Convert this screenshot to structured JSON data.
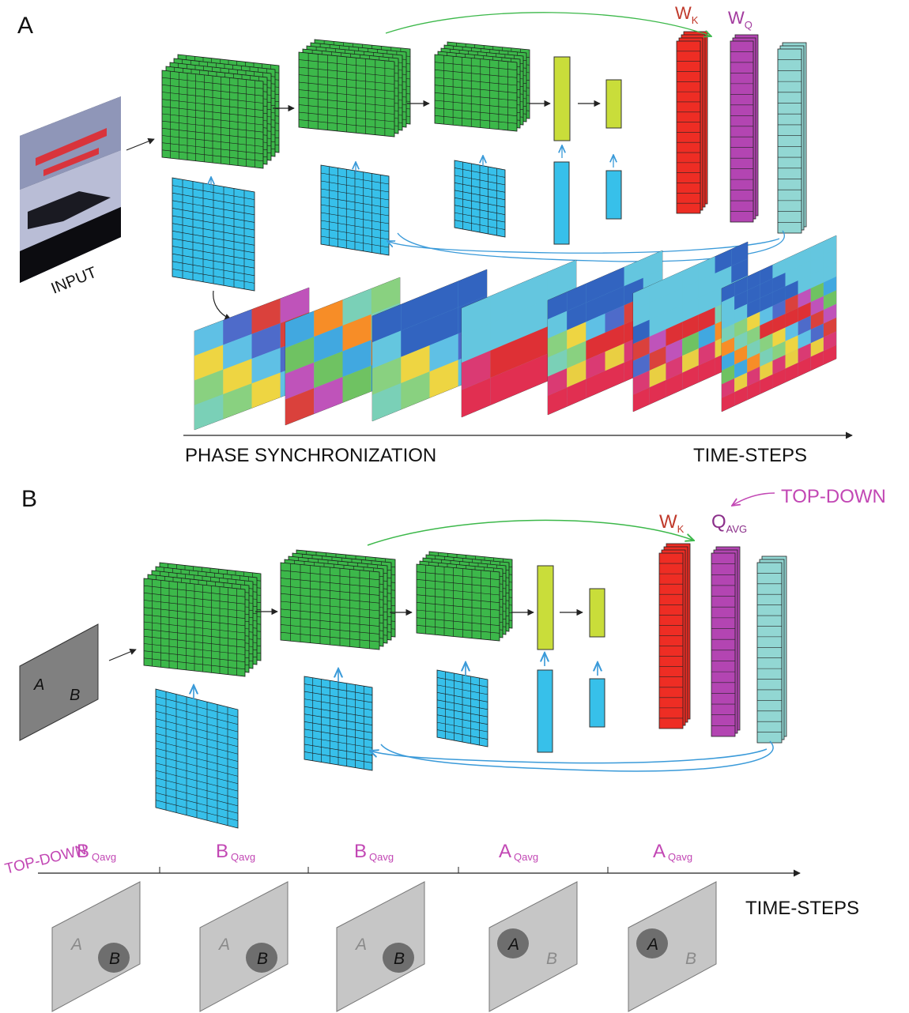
{
  "panelA": {
    "label": "A",
    "input_label": "INPUT",
    "wk_main": "W",
    "wk_sub": "K",
    "wq_main": "W",
    "wq_sub": "Q",
    "axis_left": "PHASE SYNCHRONIZATION",
    "axis_right": "TIME-STEPS"
  },
  "panelB": {
    "label": "B",
    "wk_main": "W",
    "wk_sub": "K",
    "q_main": "Q",
    "q_sub": "AVG",
    "topdown_right": "TOP-DOWN",
    "topdown_left": "TOP-DOWN",
    "input_letters": [
      "A",
      "B"
    ],
    "timeline": [
      {
        "main": "B",
        "sub": "Qavg",
        "active": "B"
      },
      {
        "main": "B",
        "sub": "Qavg",
        "active": "B"
      },
      {
        "main": "B",
        "sub": "Qavg",
        "active": "B"
      },
      {
        "main": "A",
        "sub": "Qavg",
        "active": "A"
      },
      {
        "main": "A",
        "sub": "Qavg",
        "active": "A"
      }
    ],
    "axis_right": "TIME-STEPS"
  },
  "colors": {
    "green": "#3cb84a",
    "blue": "#37c0ea",
    "yellow": "#c9dd3a",
    "red": "#ee2d24",
    "magenta": "#b345b2",
    "cyan": "#92d7d3",
    "pink_text": "#c247b4",
    "wk_text": "#c0392b"
  }
}
